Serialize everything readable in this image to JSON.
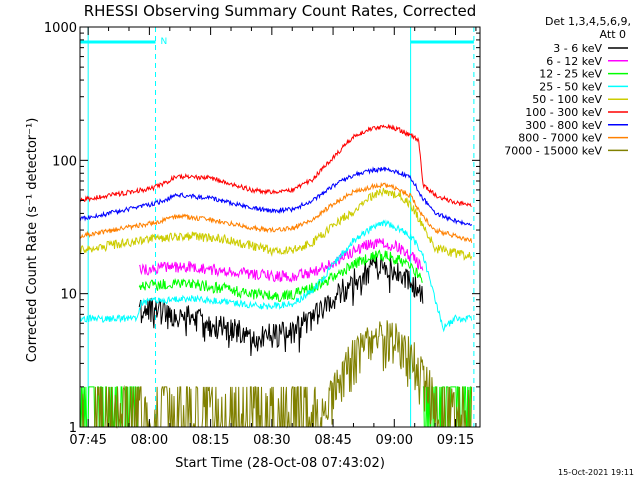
{
  "chart_data": {
    "type": "line",
    "title": "RHESSI Observing Summary Count Rates, Corrected",
    "xlabel": "Start Time (28-Oct-08 07:43:02)",
    "ylabel": "Corrected Count Rate (s⁻¹ detector⁻¹)",
    "yscale": "log",
    "ylim": [
      1,
      1000
    ],
    "xlim_minutes": [
      -2,
      96
    ],
    "x_tick_labels": [
      "07:45",
      "08:00",
      "08:15",
      "08:30",
      "08:45",
      "09:00",
      "09:15"
    ],
    "x_tick_minutes": [
      0,
      15,
      30,
      45,
      60,
      75,
      90
    ],
    "y_tick_labels": [
      "1",
      "10",
      "100",
      "1000"
    ],
    "y_tick_values": [
      1,
      10,
      100,
      1000
    ],
    "legend_header": [
      "Det 1,3,4,5,6,9,",
      "Att 0"
    ],
    "night_marker": "N",
    "footer": "15-Oct-2021 19:11",
    "markers": {
      "night_intervals_minutes": [
        [
          -2,
          16.5
        ],
        [
          79,
          94.5
        ]
      ],
      "dashed_lines_minutes": [
        16.5,
        94.5
      ],
      "solid_lines_minutes": [
        0,
        79
      ]
    },
    "series": [
      {
        "name": "3 - 6 keV",
        "color": "#000000",
        "start": 12.5,
        "end": 82,
        "x": [
          13,
          16,
          25,
          32,
          40,
          45,
          50,
          55,
          60,
          65,
          70,
          73,
          76,
          79,
          82
        ],
        "y": [
          7.3,
          7.5,
          6.6,
          5.6,
          4.9,
          4.8,
          5.2,
          6.5,
          9.0,
          12.5,
          15.5,
          16.0,
          14.5,
          12.0,
          9.5
        ]
      },
      {
        "name": "6 - 12 keV",
        "color": "#ff00ff",
        "start": 12.5,
        "end": 82,
        "x": [
          13,
          16,
          25,
          32,
          40,
          45,
          50,
          55,
          60,
          65,
          70,
          73,
          76,
          79,
          82
        ],
        "y": [
          15,
          15.5,
          16,
          15,
          14,
          13.5,
          13.5,
          14.5,
          17,
          21,
          24,
          24,
          22,
          19,
          16
        ]
      },
      {
        "name": "12 - 25 keV",
        "color": "#00ff00",
        "start": 12.5,
        "end": 82,
        "x": [
          13,
          16,
          25,
          32,
          40,
          45,
          50,
          55,
          60,
          65,
          70,
          73,
          76,
          79,
          82
        ],
        "y": [
          11,
          11.5,
          12,
          11,
          10,
          9.5,
          9.8,
          11,
          13.5,
          16.5,
          19,
          19.5,
          18,
          15.5,
          13
        ]
      },
      {
        "name": "25 - 50 keV",
        "color": "#00ffff",
        "start": -2,
        "end": 94,
        "x": [
          -2,
          12,
          13,
          16,
          25,
          32,
          40,
          45,
          50,
          55,
          60,
          65,
          70,
          73,
          76,
          79,
          82,
          85,
          87,
          90,
          94
        ],
        "y": [
          6.5,
          6.5,
          8.5,
          8.8,
          9.2,
          8.8,
          8.2,
          8.0,
          8.4,
          10.5,
          16.5,
          25,
          32,
          34,
          31,
          27,
          20,
          9,
          5.5,
          6.5,
          6.5
        ]
      },
      {
        "name": "50 - 100 keV",
        "color": "#cccc00",
        "start": -2,
        "end": 94,
        "x": [
          -2,
          16,
          25,
          32,
          40,
          45,
          50,
          55,
          60,
          65,
          70,
          73,
          76,
          79,
          82,
          85,
          90,
          94
        ],
        "y": [
          21,
          26,
          27,
          26,
          23,
          21,
          21,
          24,
          32,
          42,
          55,
          58,
          55,
          47,
          32,
          22,
          20,
          19
        ]
      },
      {
        "name": "100 - 300 keV",
        "color": "#ff0000",
        "start": -2,
        "end": 94,
        "x": [
          -2,
          16,
          22,
          30,
          40,
          45,
          50,
          55,
          60,
          65,
          70,
          73,
          76,
          79,
          81,
          82,
          85,
          90,
          94
        ],
        "y": [
          50,
          62,
          76,
          74,
          60,
          58,
          60,
          72,
          105,
          150,
          175,
          180,
          170,
          155,
          140,
          65,
          55,
          48,
          46
        ]
      },
      {
        "name": "300 - 800 keV",
        "color": "#0000ff",
        "start": -2,
        "end": 94,
        "x": [
          -2,
          16,
          22,
          30,
          40,
          45,
          50,
          55,
          60,
          65,
          70,
          73,
          76,
          79,
          82,
          85,
          90,
          94
        ],
        "y": [
          36,
          47,
          55,
          52,
          44,
          42,
          43,
          50,
          64,
          78,
          85,
          86,
          82,
          74,
          52,
          40,
          35,
          33
        ]
      },
      {
        "name": "800 - 7000 keV",
        "color": "#ff8000",
        "start": -2,
        "end": 94,
        "x": [
          -2,
          16,
          22,
          30,
          40,
          45,
          50,
          55,
          60,
          65,
          70,
          73,
          76,
          79,
          82,
          85,
          90,
          94
        ],
        "y": [
          27,
          34,
          38,
          36,
          31,
          30,
          31,
          36,
          47,
          58,
          64,
          65,
          61,
          54,
          38,
          30,
          27,
          25
        ]
      },
      {
        "name": "7000 - 15000 keV",
        "color": "#808000",
        "start": -2,
        "end": 94,
        "x": [
          -2,
          12,
          16,
          28,
          44,
          56,
          62,
          66,
          70,
          73,
          76,
          80,
          84,
          87,
          90,
          94
        ],
        "y": [
          1.0,
          1.0,
          1.0,
          1.0,
          1.0,
          1.05,
          2.4,
          3.6,
          4.3,
          4.5,
          4.2,
          3.0,
          1.8,
          1.0,
          1.0,
          1.0
        ]
      }
    ]
  }
}
